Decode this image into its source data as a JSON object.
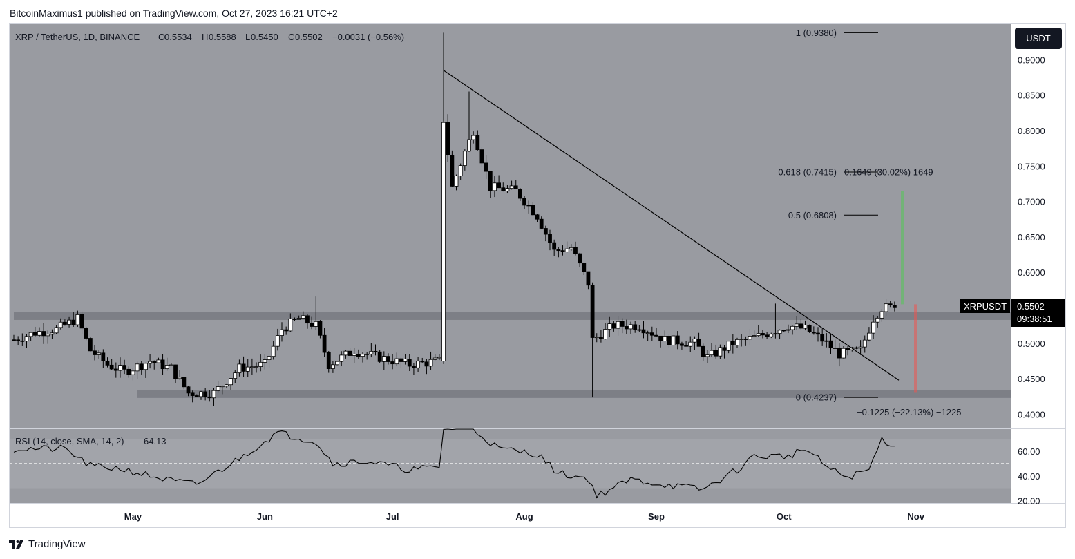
{
  "header": {
    "publish_line": "BitcoinMaximus1 published on TradingView.com, Oct 27, 2023 16:21 UTC+2",
    "symbol": "XRP / TetherUS, 1D, BINANCE",
    "ohlc": {
      "o_label": "O",
      "o": "0.5534",
      "h_label": "H",
      "h": "0.5588",
      "l_label": "L",
      "l": "0.5450",
      "c_label": "C",
      "c": "0.5502",
      "change": "−0.0031 (−0.56%)"
    }
  },
  "currency_button": "USDT",
  "price_tag": {
    "symbol": "XRPUSDT",
    "price": "0.5502",
    "countdown": "09:38:51"
  },
  "footer": {
    "brand": "TradingView"
  },
  "fib_levels": [
    {
      "label": "1 (0.9380)",
      "value": 0.938
    },
    {
      "label": "0.618 (0.7415)",
      "value": 0.7415
    },
    {
      "label": "0.5 (0.6808)",
      "value": 0.6808
    },
    {
      "label": "0 (0.4237)",
      "value": 0.4237
    }
  ],
  "projections": {
    "up": {
      "label": "0.1649 (30.02%) 1649",
      "target": 0.7152,
      "color": "#66bb6a"
    },
    "down": {
      "label": "−0.1225 (−22.13%) −1225",
      "target": 0.4302,
      "color": "#ef5350"
    }
  },
  "colors": {
    "panel_bg": "#999ba1",
    "band": "#7d7f86",
    "candle_up": "#ffffff",
    "candle_down": "#000000",
    "tag_bg": "#000000",
    "button_bg": "#131722"
  },
  "chart_data": [
    {
      "type": "candlestick",
      "title": "XRP / TetherUS, 1D, BINANCE",
      "x_ticks": [
        "May",
        "Jun",
        "Jul",
        "Aug",
        "Sep",
        "Oct",
        "Nov"
      ],
      "y_ticks": [
        "0.4000",
        "0.4500",
        "0.5000",
        "0.5500",
        "0.6000",
        "0.6500",
        "0.7000",
        "0.7500",
        "0.8000",
        "0.8500",
        "0.9000"
      ],
      "ylim": [
        0.38,
        0.95
      ],
      "x_range": [
        "2023-04-03",
        "2023-11-22"
      ],
      "support_zones": [
        {
          "from": 0.533,
          "to": 0.544,
          "start": "2023-04-03"
        },
        {
          "from": 0.423,
          "to": 0.434,
          "start": "2023-05-02"
        }
      ],
      "trendline": [
        {
          "date": "2023-07-13",
          "price": 0.885
        },
        {
          "date": "2023-10-28",
          "price": 0.448
        }
      ],
      "anchors": [
        [
          "2023-04-03",
          0.505
        ],
        [
          "2023-04-08",
          0.515
        ],
        [
          "2023-04-13",
          0.52
        ],
        [
          "2023-04-18",
          0.535
        ],
        [
          "2023-04-21",
          0.49
        ],
        [
          "2023-04-25",
          0.47
        ],
        [
          "2023-04-29",
          0.46
        ],
        [
          "2023-05-05",
          0.475
        ],
        [
          "2023-05-10",
          0.465
        ],
        [
          "2023-05-14",
          0.43
        ],
        [
          "2023-05-20",
          0.43
        ],
        [
          "2023-05-26",
          0.465
        ],
        [
          "2023-06-01",
          0.47
        ],
        [
          "2023-06-05",
          0.52
        ],
        [
          "2023-06-09",
          0.535
        ],
        [
          "2023-06-13",
          0.525
        ],
        [
          "2023-06-16",
          0.47
        ],
        [
          "2023-06-22",
          0.49
        ],
        [
          "2023-06-28",
          0.48
        ],
        [
          "2023-07-05",
          0.47
        ],
        [
          "2023-07-12",
          0.475
        ],
        [
          "2023-07-13",
          0.815
        ],
        [
          "2023-07-15",
          0.72
        ],
        [
          "2023-07-18",
          0.77
        ],
        [
          "2023-07-20",
          0.8
        ],
        [
          "2023-07-24",
          0.72
        ],
        [
          "2023-07-30",
          0.715
        ],
        [
          "2023-08-04",
          0.68
        ],
        [
          "2023-08-08",
          0.63
        ],
        [
          "2023-08-12",
          0.635
        ],
        [
          "2023-08-16",
          0.585
        ],
        [
          "2023-08-17",
          0.505
        ],
        [
          "2023-08-22",
          0.525
        ],
        [
          "2023-08-28",
          0.525
        ],
        [
          "2023-09-03",
          0.505
        ],
        [
          "2023-09-10",
          0.5
        ],
        [
          "2023-09-13",
          0.48
        ],
        [
          "2023-09-19",
          0.5
        ],
        [
          "2023-09-25",
          0.51
        ],
        [
          "2023-10-02",
          0.525
        ],
        [
          "2023-10-06",
          0.52
        ],
        [
          "2023-10-10",
          0.505
        ],
        [
          "2023-10-14",
          0.485
        ],
        [
          "2023-10-19",
          0.49
        ],
        [
          "2023-10-22",
          0.535
        ],
        [
          "2023-10-24",
          0.55
        ],
        [
          "2023-10-27",
          0.5502
        ]
      ],
      "last_candle": {
        "date": "2023-10-27",
        "open": 0.5534,
        "high": 0.5588,
        "low": 0.545,
        "close": 0.5502
      }
    },
    {
      "type": "line",
      "title": "RSI (14, close, SMA, 14, 2)",
      "value_label": "64.13",
      "last_value": 64.13,
      "y_ticks": [
        "20.00",
        "40.00",
        "60.00"
      ],
      "ylim": [
        18,
        78
      ],
      "band": [
        30,
        70
      ],
      "midline": 50,
      "anchors": [
        [
          "2023-04-03",
          62
        ],
        [
          "2023-04-15",
          62
        ],
        [
          "2023-04-21",
          48
        ],
        [
          "2023-04-28",
          46
        ],
        [
          "2023-05-10",
          36
        ],
        [
          "2023-05-16",
          33
        ],
        [
          "2023-05-25",
          52
        ],
        [
          "2023-06-04",
          75
        ],
        [
          "2023-06-13",
          68
        ],
        [
          "2023-06-17",
          50
        ],
        [
          "2023-06-25",
          52
        ],
        [
          "2023-07-05",
          45
        ],
        [
          "2023-07-12",
          47
        ],
        [
          "2023-07-13",
          79
        ],
        [
          "2023-07-20",
          78
        ],
        [
          "2023-07-26",
          62
        ],
        [
          "2023-08-04",
          58
        ],
        [
          "2023-08-09",
          42
        ],
        [
          "2023-08-16",
          38
        ],
        [
          "2023-08-18",
          24
        ],
        [
          "2023-08-26",
          37
        ],
        [
          "2023-09-03",
          33
        ],
        [
          "2023-09-12",
          29
        ],
        [
          "2023-09-20",
          45
        ],
        [
          "2023-09-24",
          56
        ],
        [
          "2023-10-02",
          56
        ],
        [
          "2023-10-06",
          62
        ],
        [
          "2023-10-12",
          45
        ],
        [
          "2023-10-16",
          39
        ],
        [
          "2023-10-21",
          45
        ],
        [
          "2023-10-24",
          70
        ],
        [
          "2023-10-27",
          64.13
        ]
      ]
    }
  ]
}
